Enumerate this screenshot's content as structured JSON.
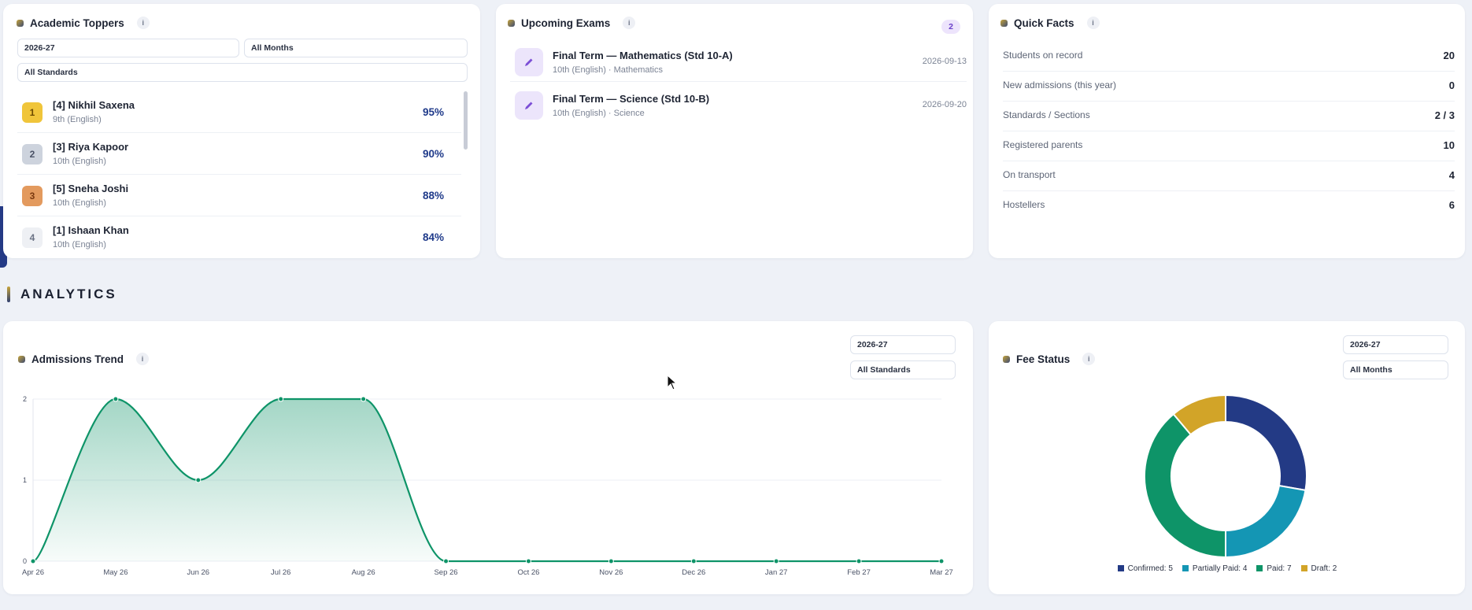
{
  "toppers": {
    "title": "Academic Toppers",
    "info": "i",
    "year_select": "2026-27",
    "month_select": "All Months",
    "standard_select": "All Standards",
    "items": [
      {
        "rank": "1",
        "name": "[4] Nikhil Saxena",
        "sub": "9th (English)",
        "pct": "95%",
        "color": "#f0c53a"
      },
      {
        "rank": "2",
        "name": "[3] Riya Kapoor",
        "sub": "10th (English)",
        "pct": "90%",
        "color": "#cdd3dd"
      },
      {
        "rank": "3",
        "name": "[5] Sneha Joshi",
        "sub": "10th (English)",
        "pct": "88%",
        "color": "#e39a5e"
      },
      {
        "rank": "4",
        "name": "[1] Ishaan Khan",
        "sub": "10th (English)",
        "pct": "84%",
        "color": "#eef0f4"
      }
    ]
  },
  "exams": {
    "title": "Upcoming Exams",
    "info": "i",
    "count": "2",
    "items": [
      {
        "title": "Final Term — Mathematics (Std 10-A)",
        "sub": "10th (English) · Mathematics",
        "date": "2026-09-13"
      },
      {
        "title": "Final Term — Science (Std 10-B)",
        "sub": "10th (English) · Science",
        "date": "2026-09-20"
      }
    ]
  },
  "facts": {
    "title": "Quick Facts",
    "info": "i",
    "items": [
      {
        "label": "Students on record",
        "value": "20"
      },
      {
        "label": "New admissions (this year)",
        "value": "0"
      },
      {
        "label": "Standards / Sections",
        "value": "2 / 3"
      },
      {
        "label": "Registered parents",
        "value": "10"
      },
      {
        "label": "On transport",
        "value": "4"
      },
      {
        "label": "Hostellers",
        "value": "6"
      }
    ]
  },
  "analytics": {
    "heading": "ANALYTICS"
  },
  "admissions": {
    "title": "Admissions Trend",
    "info": "i",
    "year_select": "2026-27",
    "standard_select": "All Standards"
  },
  "fee": {
    "title": "Fee Status",
    "info": "i",
    "year_select": "2026-27",
    "month_select": "All Months"
  },
  "colors": {
    "accent_green": "#0e9468",
    "navy": "#233a85",
    "teal": "#1496b4",
    "gold": "#d2a428"
  },
  "chart_data": [
    {
      "type": "area",
      "categories": [
        "Apr 26",
        "May 26",
        "Jun 26",
        "Jul 26",
        "Aug 26",
        "Sep 26",
        "Oct 26",
        "Nov 26",
        "Dec 26",
        "Jan 27",
        "Feb 27",
        "Mar 27"
      ],
      "values": [
        0,
        2,
        1,
        2,
        2,
        0,
        0,
        0,
        0,
        0,
        0,
        0
      ],
      "yticks": [
        "0",
        "1",
        "2"
      ],
      "ylim": [
        0,
        2
      ],
      "grid": true
    },
    {
      "type": "pie",
      "labels": [
        "Confirmed",
        "Partially Paid",
        "Paid",
        "Draft"
      ],
      "values": [
        5,
        4,
        7,
        2
      ],
      "legend": [
        "Confirmed: 5",
        "Partially Paid: 4",
        "Paid: 7",
        "Draft: 2"
      ],
      "colors": [
        "#233a85",
        "#1496b4",
        "#0e9468",
        "#d2a428"
      ],
      "legend_position": "bottom"
    }
  ]
}
